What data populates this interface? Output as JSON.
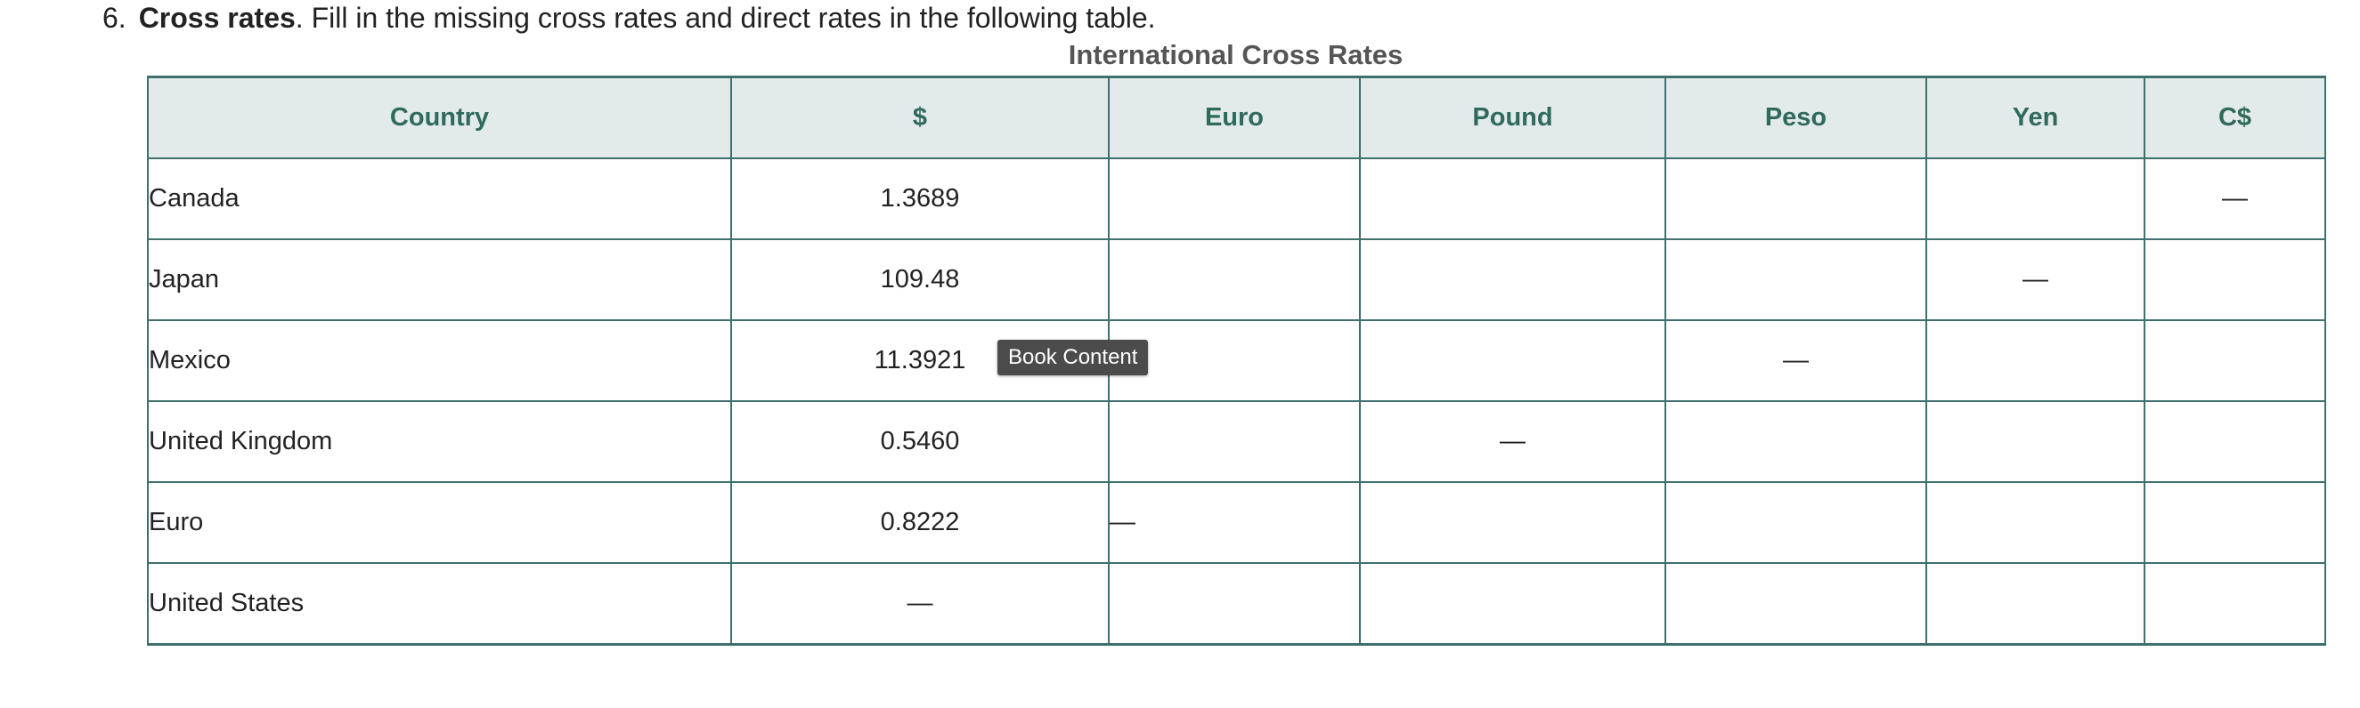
{
  "question": {
    "number": "6.",
    "title": "Cross rates",
    "text": ". Fill in the missing cross rates and direct rates in the following table."
  },
  "table": {
    "title": "International Cross Rates",
    "headers": [
      "Country",
      "$",
      "Euro",
      "Pound",
      "Peso",
      "Yen",
      "C$"
    ],
    "rows": [
      {
        "country": "Canada",
        "cells": [
          "1.3689",
          "",
          "",
          "",
          "",
          "—"
        ]
      },
      {
        "country": "Japan",
        "cells": [
          "109.48",
          "",
          "",
          "",
          "—",
          ""
        ]
      },
      {
        "country": "Mexico",
        "cells": [
          "11.3921",
          "",
          "",
          "—",
          "",
          ""
        ]
      },
      {
        "country": "United Kingdom",
        "cells": [
          "0.5460",
          "",
          "—",
          "",
          "",
          ""
        ]
      },
      {
        "country": "Euro",
        "cells": [
          "0.8222",
          "—",
          "",
          "",
          "",
          ""
        ]
      },
      {
        "country": "United States",
        "cells": [
          "—",
          "",
          "",
          "",
          "",
          ""
        ]
      }
    ]
  },
  "tooltip": {
    "label": "Book Content"
  }
}
